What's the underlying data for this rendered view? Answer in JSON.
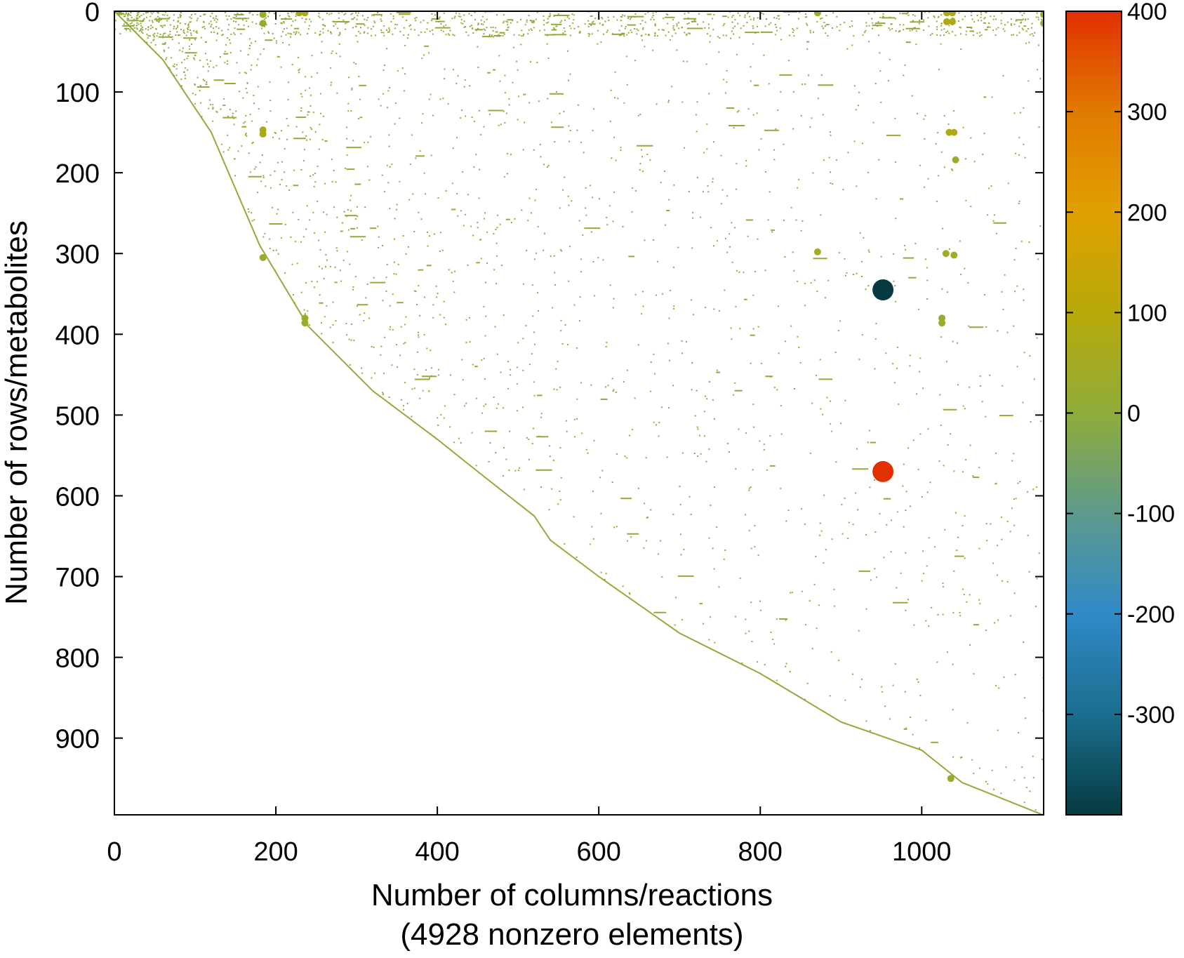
{
  "chart_data": {
    "type": "scatter",
    "subtype": "sparsity-pattern",
    "title": "",
    "xlabel": "Number of columns/reactions",
    "xlabel_sub": "(4928 nonzero elements)",
    "ylabel": "Number of rows/metabolites",
    "xlim": [
      0,
      1151
    ],
    "ylim": [
      0,
      995
    ],
    "y_inverted": true,
    "grid": false,
    "x_ticks": [
      "0",
      "200",
      "400",
      "600",
      "800",
      "1000"
    ],
    "x_tick_values": [
      0,
      200,
      400,
      600,
      800,
      1000
    ],
    "y_ticks": [
      "0",
      "100",
      "200",
      "300",
      "400",
      "500",
      "600",
      "700",
      "800",
      "900"
    ],
    "y_tick_values": [
      0,
      100,
      200,
      300,
      400,
      500,
      600,
      700,
      800,
      900
    ],
    "colorbar": {
      "range": [
        -400,
        400
      ],
      "ticks": [
        "400",
        "300",
        "200",
        "100",
        "0",
        "-100",
        "-200",
        "-300"
      ],
      "tick_values": [
        400,
        300,
        200,
        100,
        0,
        -100,
        -200,
        -300
      ],
      "palette": [
        "#063a40",
        "#1b6e8e",
        "#2f8ac6",
        "#5e9a8c",
        "#8fac3a",
        "#b7a90a",
        "#e0a000",
        "#e07a00",
        "#e23000"
      ]
    },
    "nonzero_count": 4928,
    "diagonal_band": [
      [
        0,
        0
      ],
      [
        60,
        60
      ],
      [
        120,
        150
      ],
      [
        180,
        290
      ],
      [
        240,
        390
      ],
      [
        320,
        470
      ],
      [
        400,
        530
      ],
      [
        450,
        570
      ],
      [
        520,
        625
      ],
      [
        540,
        655
      ],
      [
        600,
        700
      ],
      [
        700,
        770
      ],
      [
        800,
        820
      ],
      [
        900,
        880
      ],
      [
        1000,
        915
      ],
      [
        1050,
        955
      ],
      [
        1100,
        975
      ],
      [
        1150,
        995
      ]
    ],
    "large_points": [
      {
        "x": 952,
        "y": 345,
        "value": -400
      },
      {
        "x": 952,
        "y": 570,
        "value": 400
      }
    ],
    "medium_points": [
      {
        "x": 184,
        "y": 4,
        "value": 40
      },
      {
        "x": 184,
        "y": 15,
        "value": 25
      },
      {
        "x": 229,
        "y": 2,
        "value": 60
      },
      {
        "x": 236,
        "y": 2,
        "value": 60
      },
      {
        "x": 871,
        "y": 2,
        "value": 50
      },
      {
        "x": 1031,
        "y": 2,
        "value": 70
      },
      {
        "x": 1038,
        "y": 2,
        "value": 70
      },
      {
        "x": 1031,
        "y": 13,
        "value": 80
      },
      {
        "x": 1038,
        "y": 13,
        "value": 80
      },
      {
        "x": 1151,
        "y": 4,
        "value": 50
      },
      {
        "x": 1151,
        "y": 15,
        "value": 50
      },
      {
        "x": 184,
        "y": 147,
        "value": 60
      },
      {
        "x": 184,
        "y": 152,
        "value": 60
      },
      {
        "x": 1034,
        "y": 150,
        "value": 80
      },
      {
        "x": 1040,
        "y": 150,
        "value": 80
      },
      {
        "x": 1042,
        "y": 184,
        "value": 30
      },
      {
        "x": 871,
        "y": 298,
        "value": 50
      },
      {
        "x": 1030,
        "y": 300,
        "value": 50
      },
      {
        "x": 1040,
        "y": 302,
        "value": 50
      },
      {
        "x": 184,
        "y": 305,
        "value": 20
      },
      {
        "x": 236,
        "y": 380,
        "value": 40
      },
      {
        "x": 236,
        "y": 386,
        "value": 20
      },
      {
        "x": 1025,
        "y": 380,
        "value": 30
      },
      {
        "x": 1025,
        "y": 386,
        "value": 20
      },
      {
        "x": 1036,
        "y": 950,
        "value": 10
      }
    ]
  }
}
